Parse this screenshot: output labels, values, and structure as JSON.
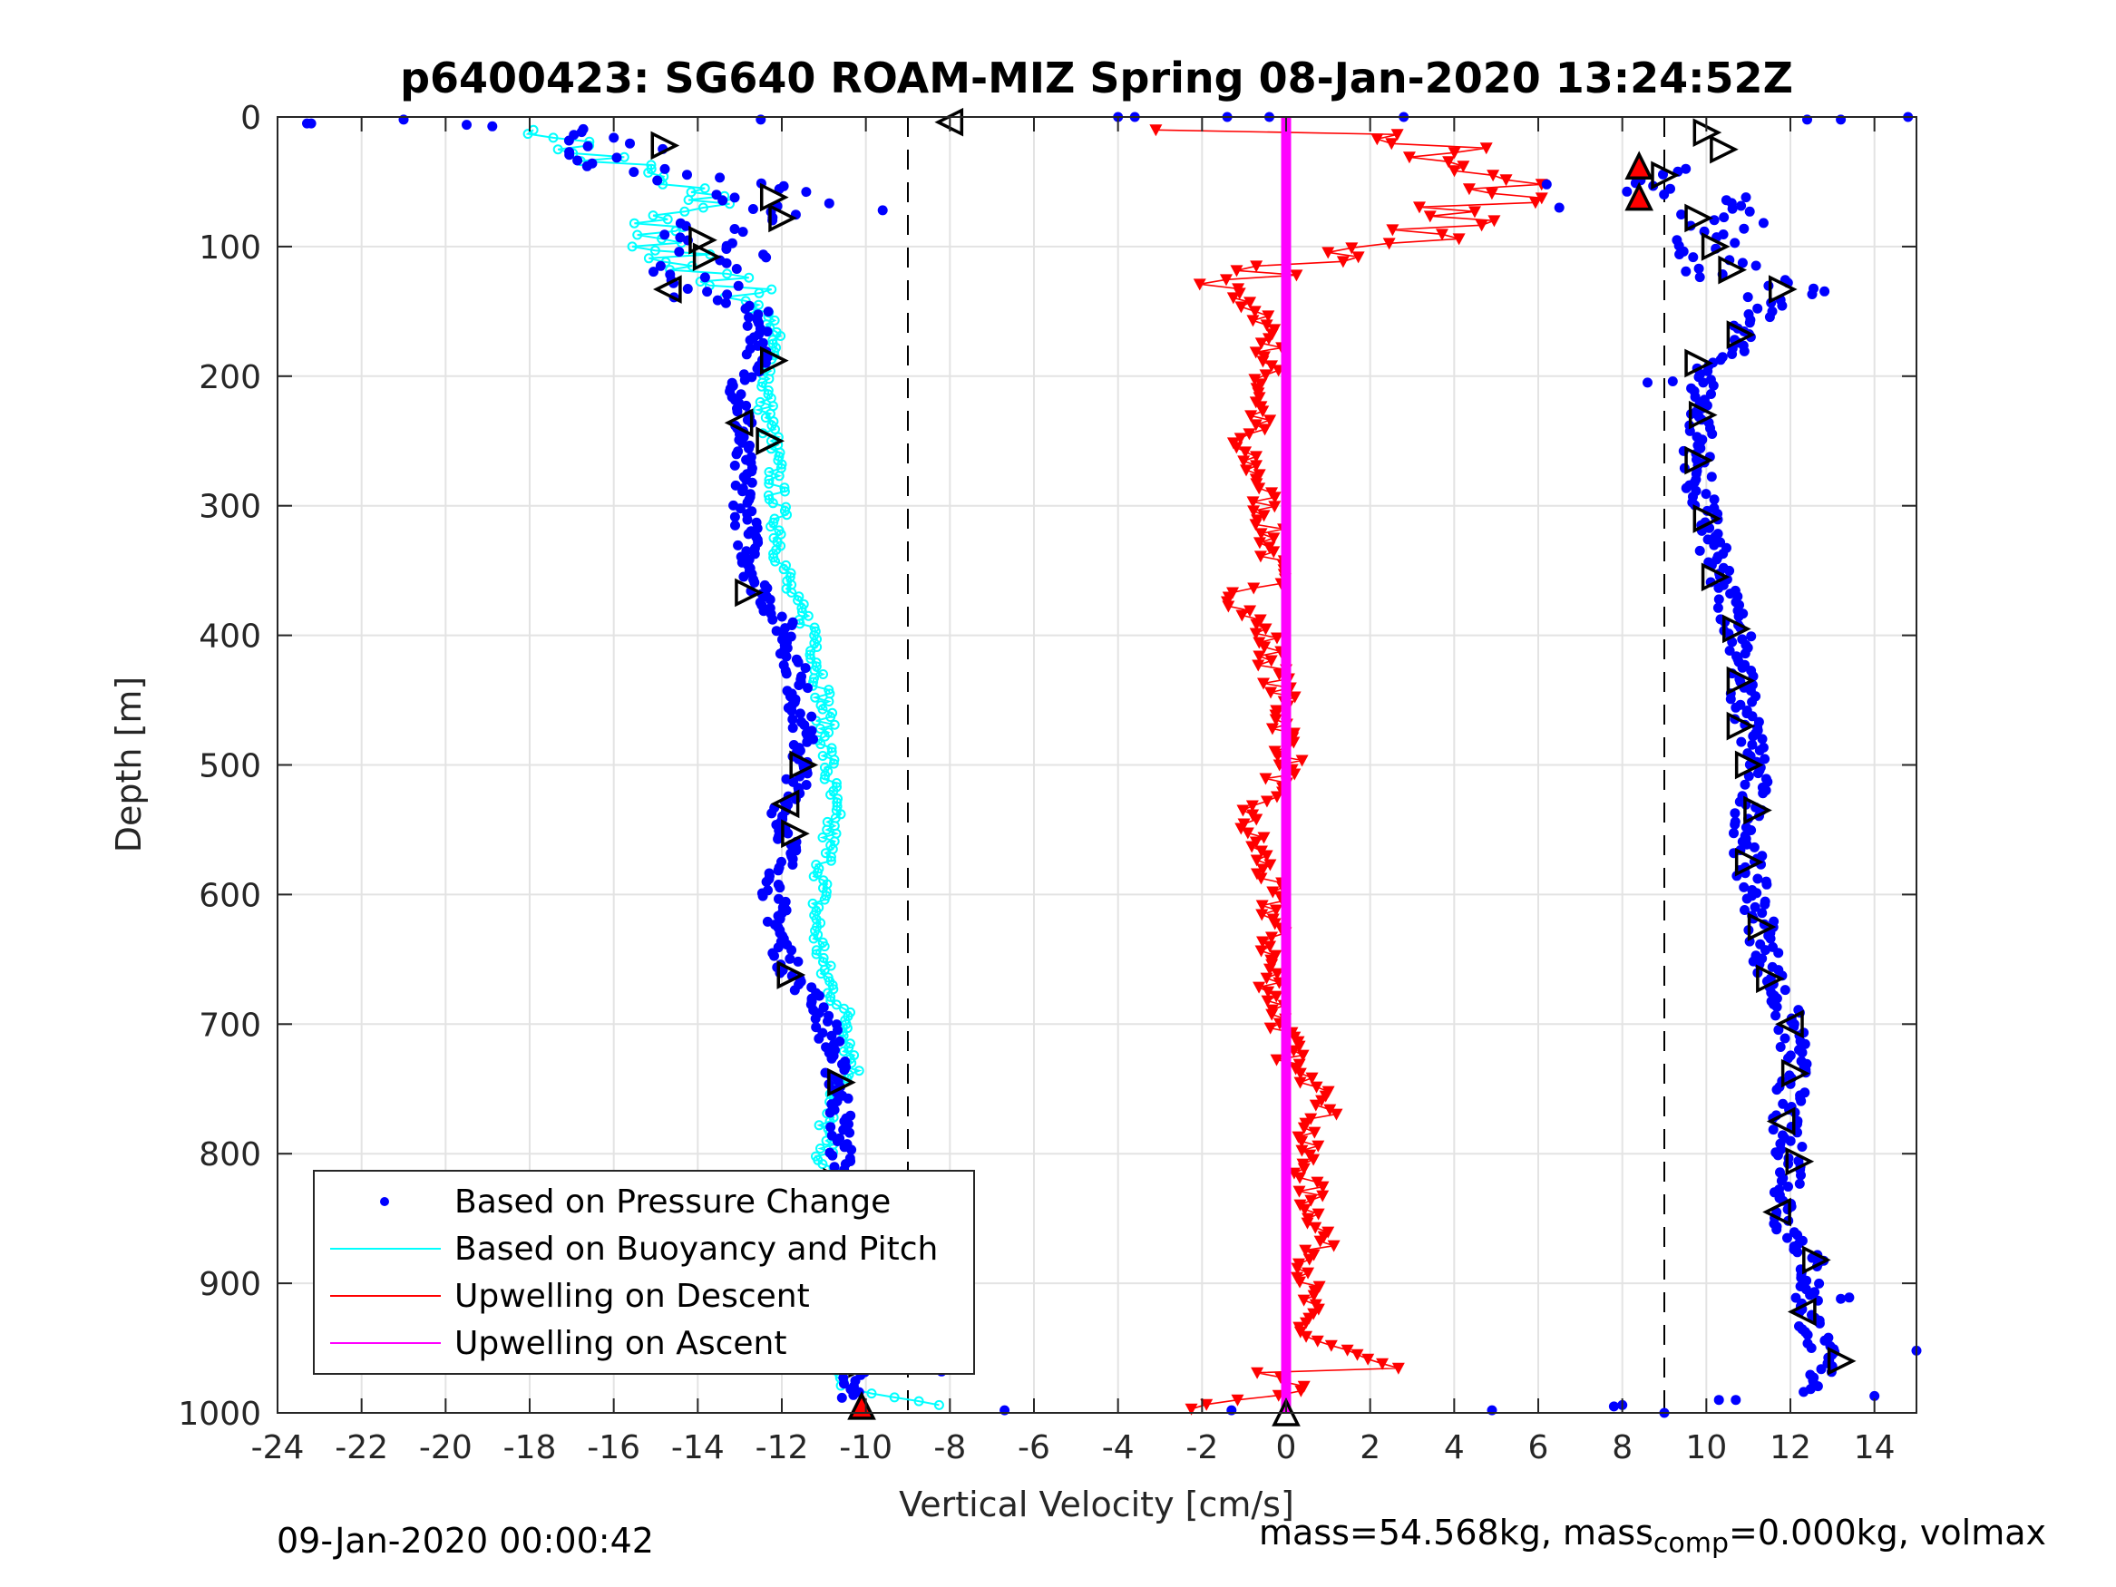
{
  "chart_data": {
    "type": "scatter",
    "title": "p6400423: SG640 ROAM-MIZ Spring 08-Jan-2020 13:24:52Z",
    "xlabel": "Vertical Velocity [cm/s]",
    "ylabel": "Depth [m]",
    "xlim": [
      -24,
      15
    ],
    "ylim": [
      0,
      1000
    ],
    "y_reversed": true,
    "grid": true,
    "x_ticks": [
      -24,
      -22,
      -20,
      -18,
      -16,
      -14,
      -12,
      -10,
      -8,
      -6,
      -4,
      -2,
      0,
      2,
      4,
      6,
      8,
      10,
      12,
      14
    ],
    "y_ticks": [
      0,
      100,
      200,
      300,
      400,
      500,
      600,
      700,
      800,
      900,
      1000
    ],
    "reference_lines_x": [
      -9,
      9
    ],
    "legend_position": "lower-left",
    "legend": [
      "Based on Pressure Change",
      "Based on Buoyancy and Pitch",
      "Upwelling on Descent",
      "Upwelling on Ascent"
    ],
    "colors": {
      "pressure": "#0000ff",
      "buoyancy": "#00ffff",
      "descent": "#ff0000",
      "ascent": "#ff00ff",
      "markers": "#000000"
    },
    "series": [
      {
        "name": "Based on Pressure Change",
        "descent": [
          [
            -23.2,
            5
          ],
          [
            -18.5,
            8
          ],
          [
            -17,
            12
          ],
          [
            -16,
            18
          ],
          [
            -15,
            20
          ],
          [
            -16.5,
            30
          ],
          [
            -15.5,
            40
          ],
          [
            -14.5,
            45
          ],
          [
            -13.5,
            50
          ],
          [
            -12.8,
            55
          ],
          [
            -12.3,
            62
          ],
          [
            -12,
            70
          ],
          [
            -13,
            80
          ],
          [
            -14,
            95
          ],
          [
            -13.5,
            105
          ],
          [
            -14,
            115
          ],
          [
            -14.5,
            128
          ],
          [
            -12.6,
            150
          ],
          [
            -12.5,
            170
          ],
          [
            -12.6,
            190
          ],
          [
            -13,
            210
          ],
          [
            -12.9,
            230
          ],
          [
            -13,
            260
          ],
          [
            -12.9,
            290
          ],
          [
            -12.8,
            330
          ],
          [
            -12.6,
            360
          ],
          [
            -12.0,
            390
          ],
          [
            -11.7,
            420
          ],
          [
            -11.6,
            450
          ],
          [
            -11.5,
            480
          ],
          [
            -11.6,
            510
          ],
          [
            -12,
            540
          ],
          [
            -11.8,
            560
          ],
          [
            -12.2,
            600
          ],
          [
            -12,
            640
          ],
          [
            -11.8,
            660
          ],
          [
            -11.0,
            690
          ],
          [
            -10.8,
            720
          ],
          [
            -10.6,
            760
          ],
          [
            -10.6,
            800
          ],
          [
            -10.4,
            830
          ],
          [
            -10.3,
            870
          ],
          [
            -10.3,
            910
          ],
          [
            -10.2,
            950
          ],
          [
            -10.3,
            990
          ]
        ],
        "ascent": [
          [
            8.5,
            40
          ],
          [
            8.2,
            50
          ],
          [
            8.6,
            60
          ],
          [
            9.2,
            35
          ],
          [
            10,
            15
          ],
          [
            10.2,
            25
          ],
          [
            11,
            30
          ],
          [
            9.8,
            55
          ],
          [
            10.4,
            80
          ],
          [
            10.3,
            100
          ],
          [
            10.5,
            120
          ],
          [
            11.8,
            135
          ],
          [
            11,
            160
          ],
          [
            10.6,
            180
          ],
          [
            9.9,
            200
          ],
          [
            9.9,
            230
          ],
          [
            9.8,
            260
          ],
          [
            9.8,
            290
          ],
          [
            10.1,
            320
          ],
          [
            10.2,
            350
          ],
          [
            10.6,
            380
          ],
          [
            10.9,
            410
          ],
          [
            10.8,
            440
          ],
          [
            11,
            470
          ],
          [
            11.2,
            500
          ],
          [
            11.0,
            540
          ],
          [
            11.0,
            580
          ],
          [
            11.3,
            620
          ],
          [
            11.5,
            660
          ],
          [
            12,
            700
          ],
          [
            12.1,
            740
          ],
          [
            11.8,
            780
          ],
          [
            12.1,
            810
          ],
          [
            11.8,
            850
          ],
          [
            12.5,
            880
          ],
          [
            12.4,
            920
          ],
          [
            12.8,
            960
          ],
          [
            12.6,
            985
          ]
        ],
        "outliers": [
          [
            -23.2,
            5
          ],
          [
            -21,
            2
          ],
          [
            -19.5,
            6
          ],
          [
            -12.5,
            2
          ],
          [
            -4,
            0
          ],
          [
            -3.6,
            0
          ],
          [
            -1.4,
            0
          ],
          [
            -0.4,
            0
          ],
          [
            2.8,
            0
          ],
          [
            -9.6,
            72
          ],
          [
            -8.2,
            968
          ],
          [
            -6.7,
            998
          ],
          [
            -1.3,
            998
          ],
          [
            4.9,
            998
          ],
          [
            7.8,
            995
          ],
          [
            8,
            994
          ],
          [
            6.2,
            52
          ],
          [
            6.5,
            70
          ],
          [
            14.8,
            0
          ],
          [
            13.2,
            2
          ],
          [
            12.4,
            2
          ],
          [
            15,
            952
          ],
          [
            14,
            987
          ],
          [
            13.4,
            911
          ],
          [
            12.5,
            950
          ],
          [
            9.2,
            204
          ],
          [
            8.6,
            205
          ],
          [
            9,
            1000
          ],
          [
            10.3,
            990
          ],
          [
            10.7,
            990
          ],
          [
            13.2,
            912
          ]
        ]
      },
      {
        "name": "Based on Buoyancy and Pitch",
        "profile": [
          [
            -18.6,
            12
          ],
          [
            -17.5,
            18
          ],
          [
            -16.5,
            28
          ],
          [
            -15.5,
            42
          ],
          [
            -14.5,
            55
          ],
          [
            -13.5,
            68
          ],
          [
            -15,
            80
          ],
          [
            -15.2,
            95
          ],
          [
            -14.2,
            110
          ],
          [
            -12.8,
            138
          ],
          [
            -12.2,
            160
          ],
          [
            -12.3,
            190
          ],
          [
            -12.4,
            220
          ],
          [
            -12.2,
            260
          ],
          [
            -12.1,
            300
          ],
          [
            -12.0,
            340
          ],
          [
            -11.8,
            370
          ],
          [
            -11.2,
            400
          ],
          [
            -11.0,
            450
          ],
          [
            -10.9,
            500
          ],
          [
            -10.8,
            540
          ],
          [
            -11.0,
            580
          ],
          [
            -11.2,
            620
          ],
          [
            -11.0,
            660
          ],
          [
            -10.4,
            700
          ],
          [
            -10.3,
            740
          ],
          [
            -10.9,
            760
          ],
          [
            -11.0,
            800
          ],
          [
            -10.8,
            830
          ],
          [
            -10.6,
            860
          ],
          [
            -10.5,
            900
          ],
          [
            -10.5,
            940
          ],
          [
            -10.6,
            980
          ],
          [
            -8.3,
            995
          ]
        ]
      },
      {
        "name": "Upwelling on Descent",
        "profile": [
          [
            -1.5,
            10
          ],
          [
            2.5,
            15
          ],
          [
            4.2,
            25
          ],
          [
            3,
            35
          ],
          [
            5,
            50
          ],
          [
            5.5,
            65
          ],
          [
            3.5,
            75
          ],
          [
            3.8,
            90
          ],
          [
            1.2,
            100
          ],
          [
            -0.8,
            120
          ],
          [
            -1.2,
            145
          ],
          [
            -0.3,
            160
          ],
          [
            -0.5,
            200
          ],
          [
            -0.7,
            240
          ],
          [
            -1.3,
            250
          ],
          [
            -0.6,
            280
          ],
          [
            -0.4,
            320
          ],
          [
            -0.3,
            360
          ],
          [
            -1.2,
            370
          ],
          [
            -0.5,
            400
          ],
          [
            -0.1,
            450
          ],
          [
            0.1,
            500
          ],
          [
            -0.4,
            520
          ],
          [
            -1,
            540
          ],
          [
            -0.5,
            580
          ],
          [
            -0.3,
            620
          ],
          [
            -0.4,
            660
          ],
          [
            -0.1,
            700
          ],
          [
            0.2,
            740
          ],
          [
            1.3,
            752
          ],
          [
            0.4,
            790
          ],
          [
            0.6,
            840
          ],
          [
            0.9,
            860
          ],
          [
            0.5,
            900
          ],
          [
            0.4,
            940
          ],
          [
            2.6,
            968
          ],
          [
            -2.1,
            960
          ],
          [
            0.5,
            980
          ],
          [
            -2.3,
            998
          ]
        ]
      },
      {
        "name": "Upwelling on Ascent",
        "value": 0
      }
    ]
  },
  "footer": {
    "left_text": "09-Jan-2020 00:00:42",
    "right_text": "mass=54.568kg, mass",
    "right_subscript": "comp",
    "right_tail": "=0.000kg, volmax"
  }
}
